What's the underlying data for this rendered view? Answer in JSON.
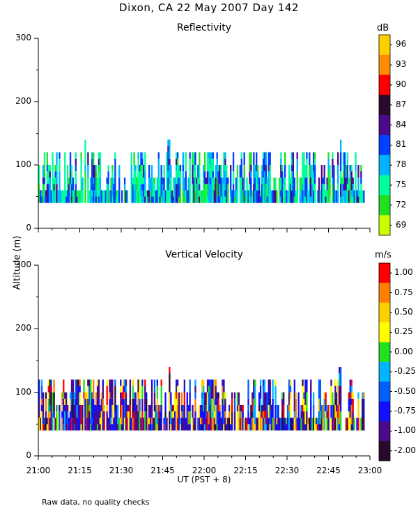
{
  "title": "Dixon, CA 22 May 2007  Day 142",
  "footer": "Raw data, no quality checks",
  "chart_data": [
    {
      "type": "heatmap",
      "title": "Reflectivity",
      "ylabel": "Altitude (m)",
      "xlabel": "UT  (PST + 8)",
      "xlim": [
        "21:00",
        "23:00"
      ],
      "x_ticks": [
        "21:00",
        "21:15",
        "21:30",
        "21:45",
        "22:00",
        "22:15",
        "22:30",
        "22:45",
        "23:00"
      ],
      "ylim": [
        0,
        300
      ],
      "y_ticks": [
        0,
        100,
        200,
        300
      ],
      "data_altitude_range": [
        40,
        140
      ],
      "colorbar_unit": "dB",
      "colorbar_labels": [
        "96",
        "93",
        "90",
        "87",
        "84",
        "81",
        "78",
        "75",
        "72",
        "69"
      ],
      "colorbar_colors": [
        "#ffd000",
        "#ff8c00",
        "#ff0000",
        "#2a0a2a",
        "#4b0a8c",
        "#0040ff",
        "#00b4ff",
        "#00ff9a",
        "#20e020",
        "#c8ff00"
      ],
      "max_echo_tops_m": [
        {
          "time": "21:17",
          "alt": 140
        },
        {
          "time": "21:47",
          "alt": 140
        },
        {
          "time": "22:49",
          "alt": 140
        }
      ]
    },
    {
      "type": "heatmap",
      "title": "Vertical Velocity",
      "ylabel": "Altitude (m)",
      "xlabel": "UT  (PST + 8)",
      "xlim": [
        "21:00",
        "23:00"
      ],
      "x_ticks": [
        "21:00",
        "21:15",
        "21:30",
        "21:45",
        "22:00",
        "22:15",
        "22:30",
        "22:45",
        "23:00"
      ],
      "ylim": [
        0,
        300
      ],
      "y_ticks": [
        0,
        100,
        200,
        300
      ],
      "data_altitude_range": [
        40,
        140
      ],
      "colorbar_unit": "m/s",
      "colorbar_labels": [
        "1.00",
        "0.75",
        "0.50",
        "0.25",
        "0.00",
        "-0.25",
        "-0.50",
        "-0.75",
        "-1.00",
        "-2.00"
      ],
      "colorbar_colors": [
        "#ff0000",
        "#ff8000",
        "#ffd000",
        "#ffff00",
        "#20e020",
        "#00b4ff",
        "#0060ff",
        "#1010ff",
        "#4b0a8c",
        "#2a0a2a"
      ],
      "max_echo_tops_m": [
        {
          "time": "21:47",
          "alt": 140
        },
        {
          "time": "22:49",
          "alt": 140
        }
      ]
    }
  ]
}
